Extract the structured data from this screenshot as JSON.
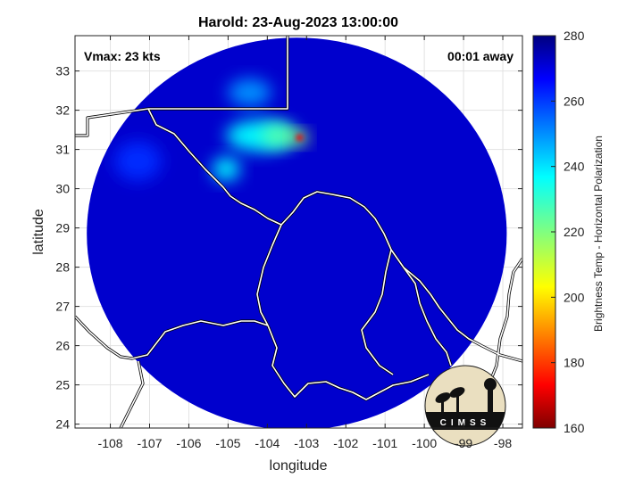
{
  "chart_data": {
    "type": "heatmap",
    "title": "Harold: 23-Aug-2023 13:00:00",
    "xlabel": "longitude",
    "ylabel": "latitude",
    "xlim": [
      -108.9,
      -97.5
    ],
    "ylim": [
      23.9,
      33.9
    ],
    "xticks": [
      -108,
      -107,
      -106,
      -105,
      -104,
      -103,
      -102,
      -101,
      -100,
      -99,
      -98
    ],
    "yticks": [
      24,
      25,
      26,
      27,
      28,
      29,
      30,
      31,
      32,
      33
    ],
    "grid": true,
    "annotations": {
      "vmax": "Vmax: 23 kts",
      "away": "00:01 away"
    },
    "colorbar": {
      "label": "Brightness Temp - Horizontal Polarization",
      "min": 160,
      "max": 280,
      "ticks": [
        160,
        180,
        200,
        220,
        240,
        260,
        280
      ],
      "colormap": "jet"
    },
    "footprint": {
      "center": [
        -103.25,
        28.85
      ],
      "radius_deg_lon": 5.35,
      "radius_deg_lat": 5.0
    },
    "background_value": 272,
    "features": [
      {
        "lon": -104.45,
        "lat": 32.45,
        "rx": 0.55,
        "ry": 0.35,
        "value": 250
      },
      {
        "lon": -104.2,
        "lat": 31.35,
        "rx": 0.85,
        "ry": 0.4,
        "value": 238
      },
      {
        "lon": -103.7,
        "lat": 31.35,
        "rx": 0.45,
        "ry": 0.3,
        "value": 226
      },
      {
        "lon": -103.18,
        "lat": 31.3,
        "rx": 0.22,
        "ry": 0.18,
        "value": 215
      },
      {
        "lon": -103.18,
        "lat": 31.3,
        "rx": 0.09,
        "ry": 0.08,
        "value": 172
      },
      {
        "lon": -105.05,
        "lat": 30.5,
        "rx": 0.35,
        "ry": 0.3,
        "value": 238
      },
      {
        "lon": -107.3,
        "lat": 30.7,
        "rx": 0.6,
        "ry": 0.5,
        "value": 262
      }
    ],
    "logo": {
      "text": "CIMSS"
    }
  }
}
